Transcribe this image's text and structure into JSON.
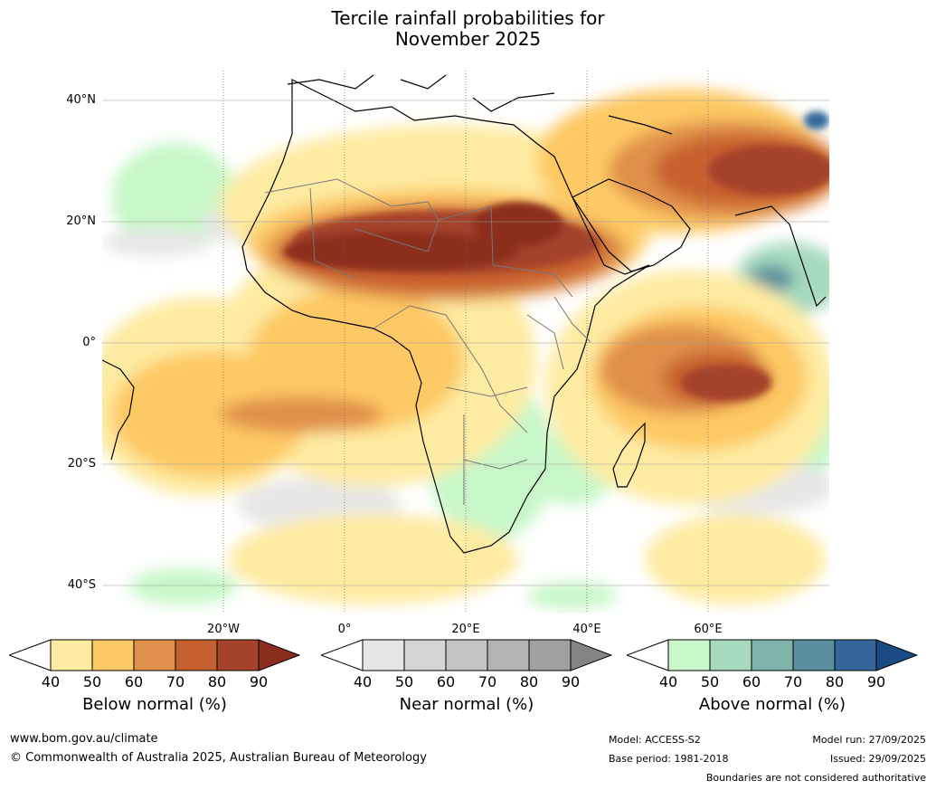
{
  "title": {
    "line1": "Tercile rainfall probabilities for",
    "line2": "November 2025"
  },
  "lat_labels": [
    "40°N",
    "20°N",
    "0°",
    "20°S",
    "40°S"
  ],
  "lon_labels": [
    "20°W",
    "0°",
    "20°E",
    "40°E",
    "60°E"
  ],
  "legends": [
    {
      "title": "Below normal (%)",
      "ticks": [
        "40",
        "50",
        "60",
        "70",
        "80",
        "90"
      ],
      "colors": [
        "#ffffff",
        "#feeba2",
        "#fdc965",
        "#e0904a",
        "#c7602f",
        "#a5432a",
        "#8c2e1f"
      ]
    },
    {
      "title": "Near normal (%)",
      "ticks": [
        "40",
        "50",
        "60",
        "70",
        "80",
        "90"
      ],
      "colors": [
        "#ffffff",
        "#e6e6e6",
        "#d5d5d5",
        "#c4c4c4",
        "#b3b3b3",
        "#a0a0a0",
        "#848484"
      ]
    },
    {
      "title": "Above normal (%)",
      "ticks": [
        "40",
        "50",
        "60",
        "70",
        "80",
        "90"
      ],
      "colors": [
        "#ffffff",
        "#c7f7c8",
        "#a6d9bd",
        "#7fb4ad",
        "#5a8f9f",
        "#33679b",
        "#1b4a85"
      ]
    }
  ],
  "footer": {
    "url": "www.bom.gov.au/climate",
    "copyright": "© Commonwealth of Australia 2025, Australian Bureau of Meteorology",
    "model": "Model: ACCESS-S2",
    "base_period": "Base period: 1981-2018",
    "model_run": "Model run: 27/09/2025",
    "issued": "Issued: 29/09/2025",
    "boundaries": "Boundaries are not considered authoritative"
  }
}
